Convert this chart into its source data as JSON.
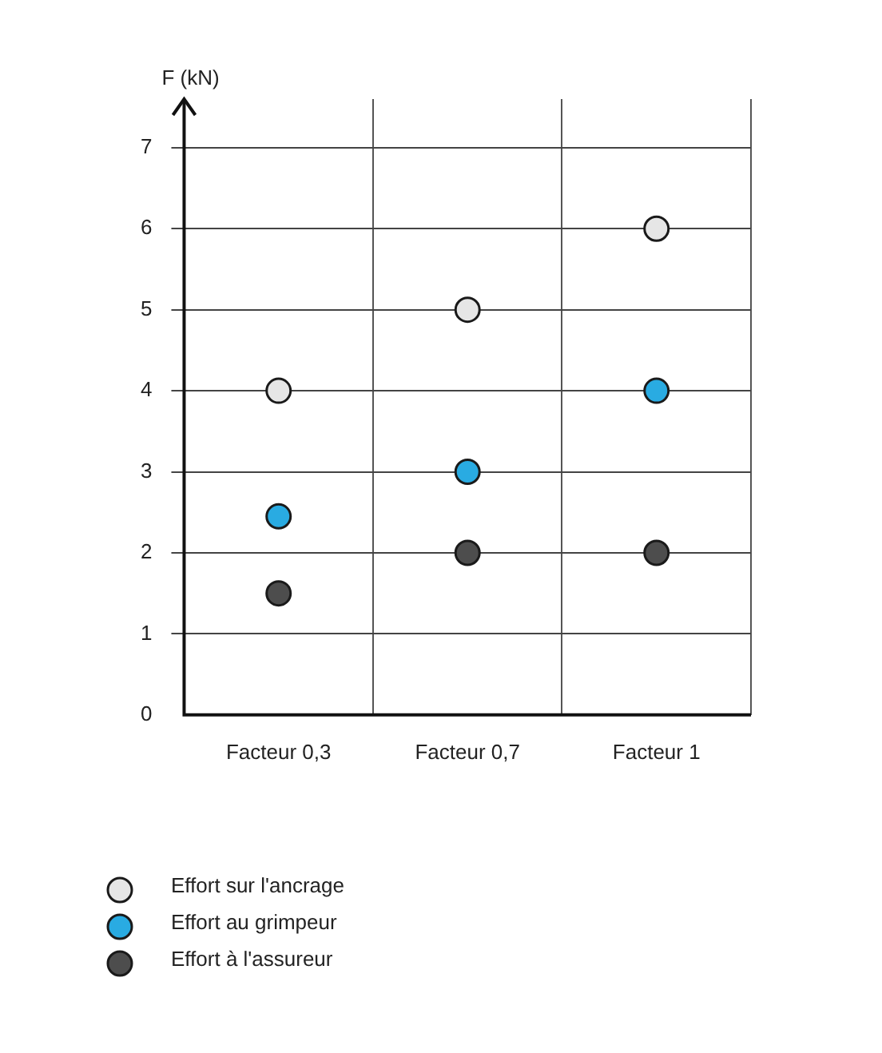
{
  "chart_data": {
    "type": "scatter",
    "ylabel": "F (kN)",
    "categories": [
      "Facteur 0,3",
      "Facteur 0,7",
      "Facteur 1"
    ],
    "series": [
      {
        "name": "Effort sur l'ancrage",
        "color": "#e6e6e6",
        "values": [
          4,
          5,
          6
        ]
      },
      {
        "name": "Effort au grimpeur",
        "color": "#29abe2",
        "values": [
          2.45,
          3,
          4
        ]
      },
      {
        "name": "Effort à l'assureur",
        "color": "#4d4d4d",
        "values": [
          1.5,
          2,
          2
        ]
      }
    ],
    "ylim": [
      0,
      7.6
    ],
    "yticks": [
      0,
      1,
      2,
      3,
      4,
      5,
      6,
      7
    ],
    "grid": true,
    "legend": "bottom left",
    "marker": "circle"
  }
}
